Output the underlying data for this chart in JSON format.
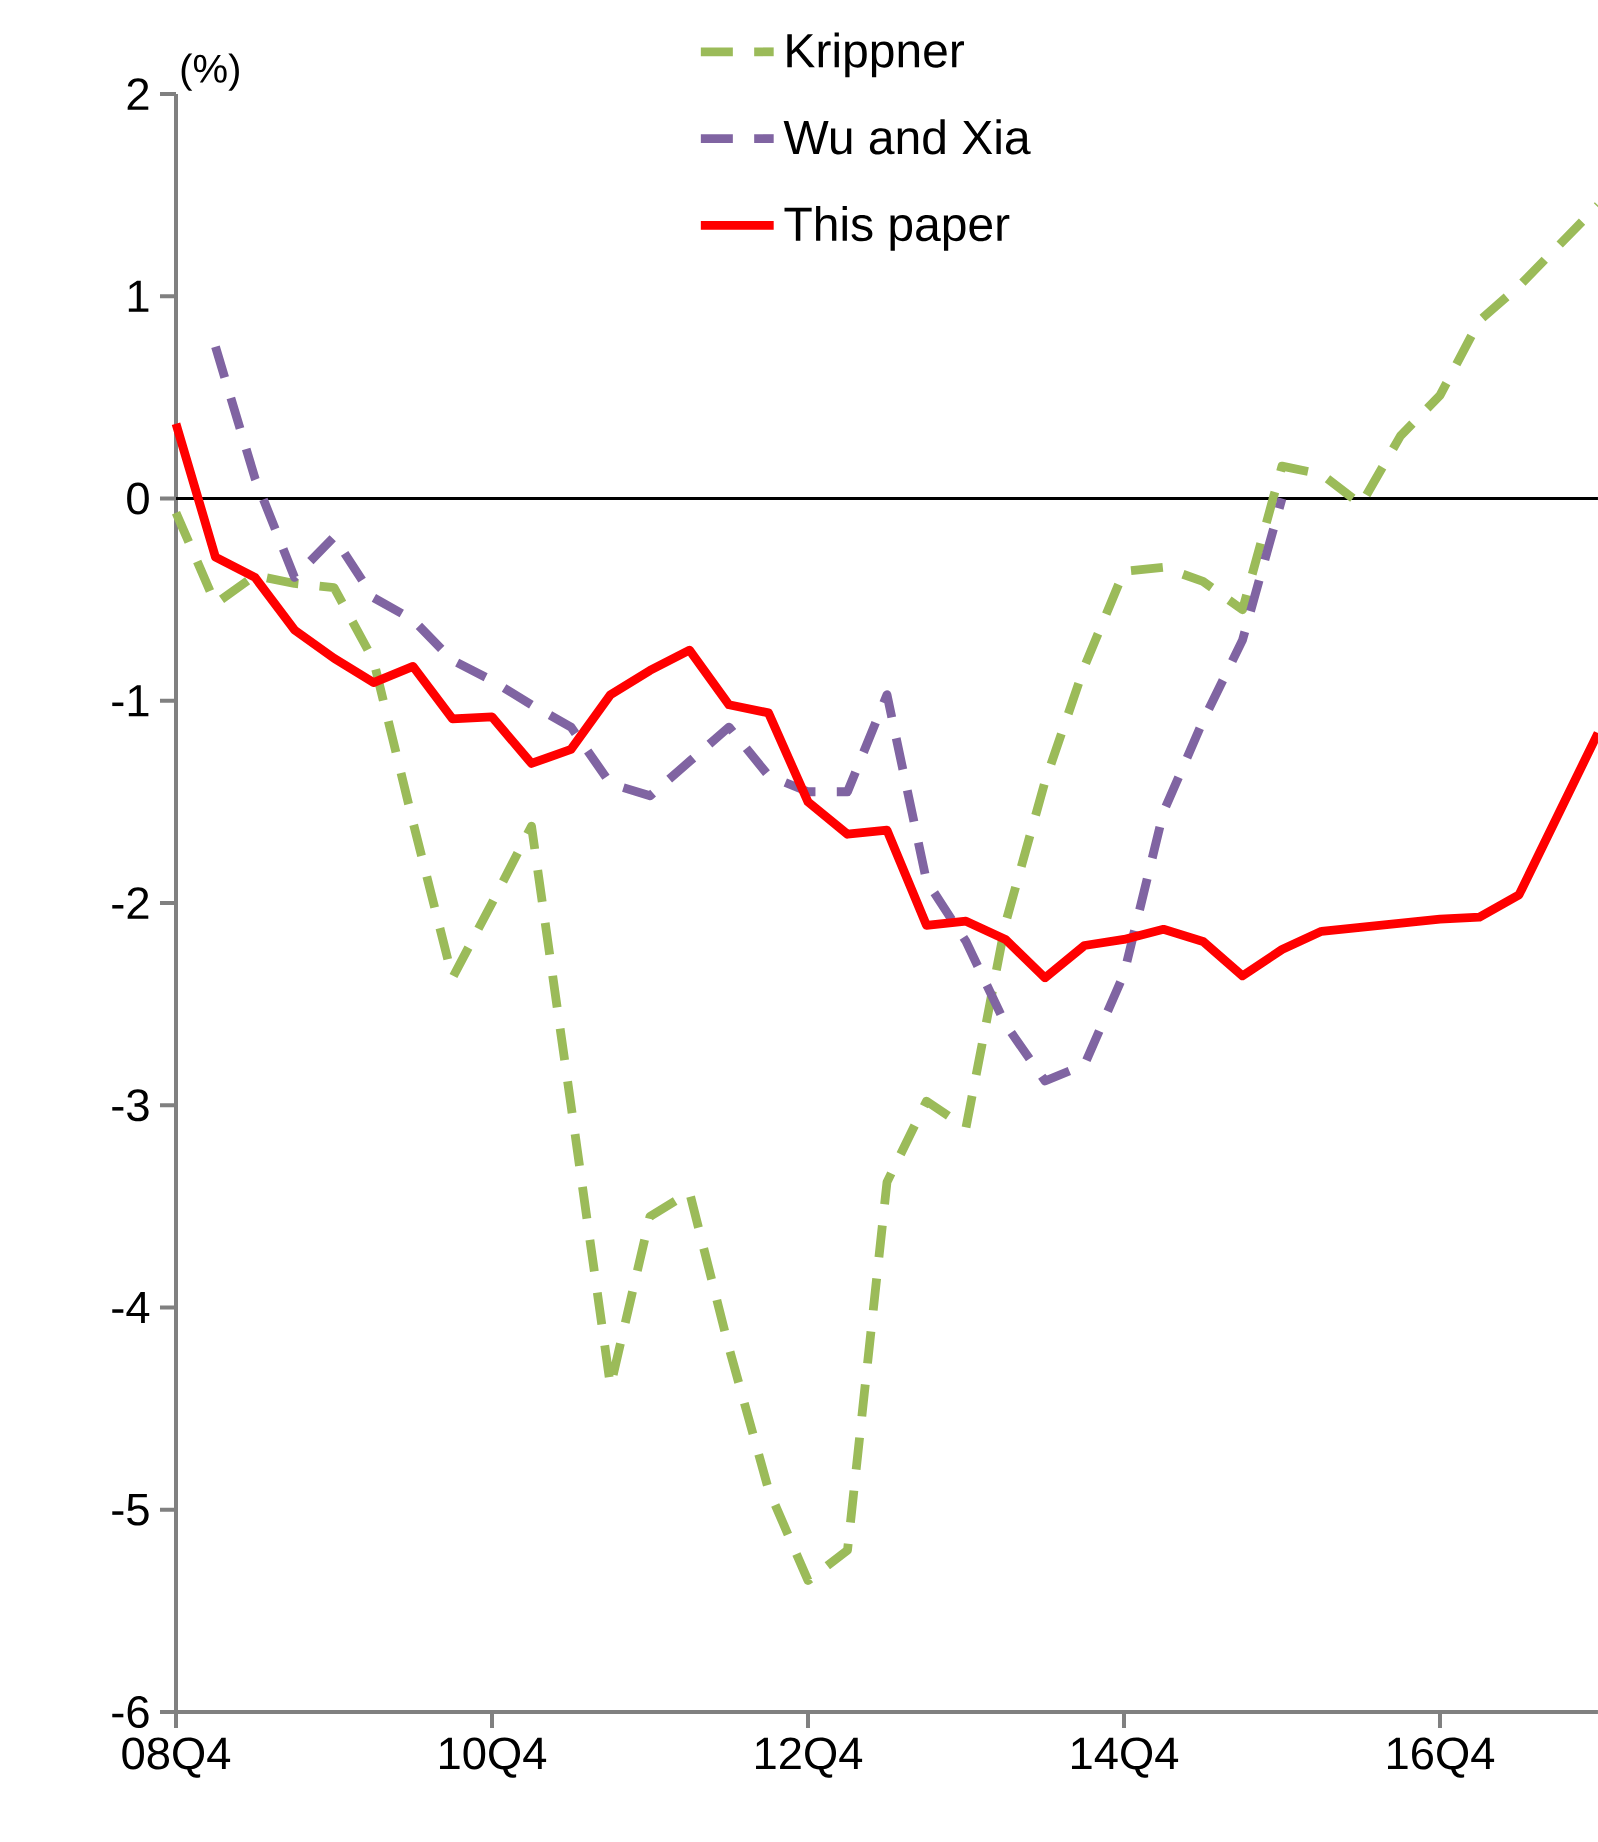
{
  "chart_data": {
    "type": "line",
    "ylabel": "(%)",
    "categories": [
      "08Q4",
      null,
      null,
      null,
      null,
      null,
      null,
      null,
      "10Q4",
      null,
      null,
      null,
      null,
      null,
      null,
      null,
      "12Q4",
      null,
      null,
      null,
      null,
      null,
      null,
      null,
      "14Q4",
      null,
      null,
      null,
      null,
      null,
      null,
      null,
      "16Q4",
      null,
      null,
      null,
      null
    ],
    "series": [
      {
        "name": "Krippner",
        "color": "#9bbb59",
        "line_style": "dashed",
        "values": [
          -0.07,
          -0.52,
          -0.38,
          -0.42,
          -0.44,
          -0.8,
          -1.6,
          -2.37,
          -2.0,
          -1.62,
          -3.0,
          -4.39,
          -3.55,
          -3.43,
          -4.2,
          -4.9,
          -5.35,
          -5.2,
          -3.38,
          -2.98,
          -3.11,
          -2.1,
          -1.4,
          -0.83,
          -0.36,
          -0.34,
          -0.41,
          -0.55,
          0.16,
          0.12,
          -0.03,
          0.31,
          0.51,
          0.88,
          1.05,
          1.25,
          1.45
        ]
      },
      {
        "name": "Wu and Xia",
        "color": "#8064a2",
        "line_style": "dashed",
        "values": [
          null,
          0.75,
          0.1,
          -0.39,
          -0.19,
          -0.49,
          -0.6,
          -0.8,
          -0.9,
          -1.02,
          -1.13,
          -1.41,
          -1.47,
          -1.3,
          -1.13,
          -1.37,
          -1.45,
          -1.45,
          -0.97,
          -1.89,
          -2.19,
          -2.6,
          -2.88,
          -2.8,
          -2.35,
          -1.55,
          -1.1,
          -0.7,
          0.0,
          null,
          null,
          null,
          null,
          null,
          null,
          null,
          null
        ]
      },
      {
        "name": "This paper",
        "color": "#ff0000",
        "line_style": "solid",
        "values": [
          0.37,
          -0.29,
          -0.39,
          -0.65,
          -0.79,
          -0.91,
          -0.83,
          -1.09,
          -1.08,
          -1.31,
          -1.24,
          -0.97,
          -0.85,
          -0.75,
          -1.02,
          -1.06,
          -1.5,
          -1.66,
          -1.64,
          -2.11,
          -2.09,
          -2.18,
          -2.37,
          -2.21,
          -2.18,
          -2.13,
          -2.19,
          -2.36,
          -2.23,
          -2.14,
          -2.12,
          -2.1,
          -2.08,
          -2.07,
          -1.96,
          -1.56,
          -1.16
        ]
      }
    ],
    "ylim": [
      -6,
      2
    ],
    "yticks": [
      -6,
      -5,
      -4,
      -3,
      -2,
      -1,
      0,
      1,
      2
    ],
    "ref_lines": [
      {
        "axis": "y",
        "value": 0,
        "color": "#000000"
      }
    ],
    "legend": "top right",
    "grid": false,
    "marker": "none"
  }
}
